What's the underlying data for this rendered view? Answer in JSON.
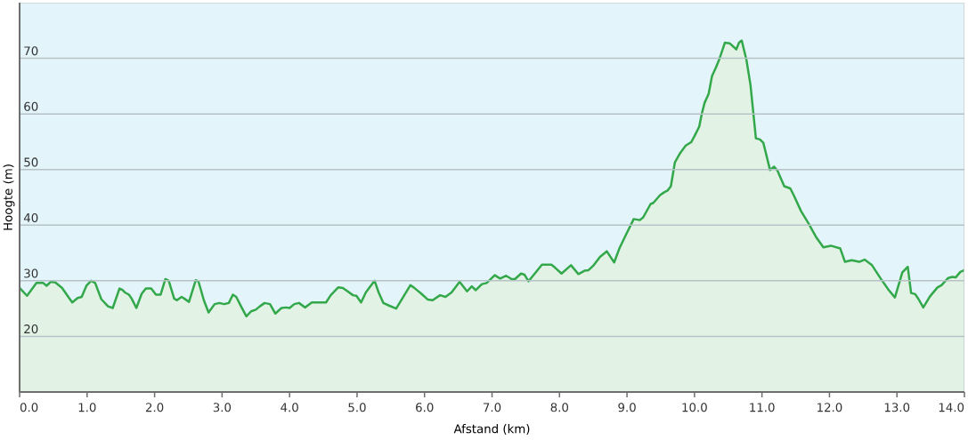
{
  "chart_data": {
    "type": "area",
    "xlabel": "Afstand (km)",
    "ylabel": "Hoogte (m)",
    "x": [
      0.0,
      0.11,
      0.25,
      0.35,
      0.4,
      0.46,
      0.53,
      0.63,
      0.71,
      0.78,
      0.86,
      0.92,
      0.99,
      1.06,
      1.12,
      1.21,
      1.31,
      1.38,
      1.48,
      1.52,
      1.56,
      1.62,
      1.66,
      1.73,
      1.81,
      1.87,
      1.95,
      2.02,
      2.09,
      2.16,
      2.21,
      2.29,
      2.33,
      2.4,
      2.44,
      2.51,
      2.61,
      2.65,
      2.73,
      2.8,
      2.89,
      2.96,
      3.03,
      3.1,
      3.16,
      3.21,
      3.29,
      3.36,
      3.43,
      3.5,
      3.56,
      3.63,
      3.71,
      3.79,
      3.88,
      3.95,
      4.0,
      4.07,
      4.14,
      4.23,
      4.33,
      4.42,
      4.54,
      4.61,
      4.72,
      4.79,
      4.87,
      4.94,
      4.99,
      5.06,
      5.13,
      5.26,
      5.32,
      5.39,
      5.48,
      5.58,
      5.67,
      5.79,
      5.84,
      5.88,
      5.95,
      6.05,
      6.12,
      6.23,
      6.31,
      6.4,
      6.52,
      6.63,
      6.7,
      6.76,
      6.85,
      6.92,
      7.04,
      7.12,
      7.21,
      7.29,
      7.34,
      7.43,
      7.48,
      7.54,
      7.74,
      7.88,
      7.93,
      8.03,
      8.17,
      8.28,
      8.37,
      8.43,
      8.5,
      8.6,
      8.7,
      8.81,
      8.89,
      8.99,
      9.1,
      9.19,
      9.24,
      9.35,
      9.39,
      9.49,
      9.55,
      9.6,
      9.65,
      9.71,
      9.79,
      9.87,
      9.95,
      10.0,
      10.07,
      10.11,
      10.15,
      10.21,
      10.26,
      10.32,
      10.37,
      10.45,
      10.52,
      10.62,
      10.66,
      10.7,
      10.77,
      10.83,
      10.87,
      10.91,
      10.97,
      11.02,
      11.12,
      11.18,
      11.23,
      11.33,
      11.42,
      11.47,
      11.58,
      11.69,
      11.8,
      11.91,
      12.02,
      12.16,
      12.23,
      12.33,
      12.44,
      12.52,
      12.63,
      12.77,
      12.88,
      12.97,
      13.08,
      13.16,
      13.21,
      13.27,
      13.32,
      13.39,
      13.49,
      13.6,
      13.66,
      13.76,
      13.82,
      13.87,
      13.94,
      14.0
    ],
    "series": [
      {
        "color": "#33a84a",
        "values": [
          28.7,
          27.3,
          29.6,
          29.6,
          29.1,
          29.8,
          29.7,
          28.7,
          27.3,
          26.1,
          26.9,
          27.1,
          29.1,
          30.0,
          29.6,
          26.7,
          25.4,
          25.1,
          28.6,
          28.4,
          27.9,
          27.5,
          26.8,
          25.1,
          27.7,
          28.6,
          28.6,
          27.5,
          27.5,
          30.3,
          30.0,
          26.8,
          26.5,
          27.1,
          26.8,
          26.2,
          30.1,
          29.9,
          26.5,
          24.3,
          25.8,
          26.0,
          25.8,
          26.0,
          27.5,
          27.1,
          25.2,
          23.6,
          24.5,
          24.8,
          25.4,
          26.0,
          25.8,
          24.1,
          25.1,
          25.2,
          25.1,
          25.8,
          26.0,
          25.2,
          26.1,
          26.1,
          26.1,
          27.4,
          28.8,
          28.7,
          28.0,
          27.4,
          27.3,
          26.1,
          27.9,
          30.0,
          27.9,
          26.0,
          25.5,
          25.0,
          26.8,
          29.2,
          28.8,
          28.4,
          27.7,
          26.6,
          26.5,
          27.4,
          27.1,
          27.9,
          29.8,
          28.1,
          29.0,
          28.3,
          29.4,
          29.6,
          31.0,
          30.4,
          30.9,
          30.3,
          30.3,
          31.3,
          31.1,
          29.9,
          32.9,
          32.9,
          32.4,
          31.3,
          32.8,
          31.2,
          31.8,
          31.9,
          32.7,
          34.3,
          35.3,
          33.3,
          35.9,
          38.4,
          41.1,
          40.9,
          41.4,
          43.8,
          44.0,
          45.4,
          45.9,
          46.2,
          47.0,
          51.3,
          53.0,
          54.3,
          54.9,
          56.0,
          57.7,
          60.1,
          62.0,
          63.6,
          66.8,
          68.4,
          69.9,
          72.8,
          72.7,
          71.6,
          72.8,
          73.2,
          69.7,
          65.2,
          60.4,
          55.6,
          55.4,
          54.8,
          49.9,
          50.5,
          49.8,
          47.0,
          46.6,
          45.4,
          42.5,
          40.3,
          37.9,
          36.0,
          36.3,
          35.8,
          33.4,
          33.7,
          33.4,
          33.8,
          32.8,
          30.2,
          28.3,
          27.0,
          31.5,
          32.5,
          27.8,
          27.6,
          26.7,
          25.2,
          27.2,
          28.8,
          29.2,
          30.5,
          30.7,
          30.6,
          31.6,
          31.9
        ]
      }
    ],
    "xlim": [
      0,
      14
    ],
    "ylim": [
      10,
      80
    ],
    "xticks": [
      {
        "value": 0,
        "label": "0.0"
      },
      {
        "value": 1,
        "label": "1.0"
      },
      {
        "value": 2,
        "label": "2.0"
      },
      {
        "value": 3,
        "label": "3.0"
      },
      {
        "value": 4,
        "label": "4.0"
      },
      {
        "value": 5,
        "label": "5.0"
      },
      {
        "value": 6,
        "label": "6.0"
      },
      {
        "value": 7,
        "label": "7.0"
      },
      {
        "value": 8,
        "label": "8.0"
      },
      {
        "value": 9,
        "label": "9.0"
      },
      {
        "value": 10,
        "label": "10.0"
      },
      {
        "value": 11,
        "label": "11.0"
      },
      {
        "value": 12,
        "label": "12.0"
      },
      {
        "value": 13,
        "label": "13.0"
      },
      {
        "value": 14,
        "label": "14.0"
      }
    ],
    "yticks": [
      20,
      30,
      40,
      50,
      60,
      70
    ],
    "grid": "y"
  }
}
